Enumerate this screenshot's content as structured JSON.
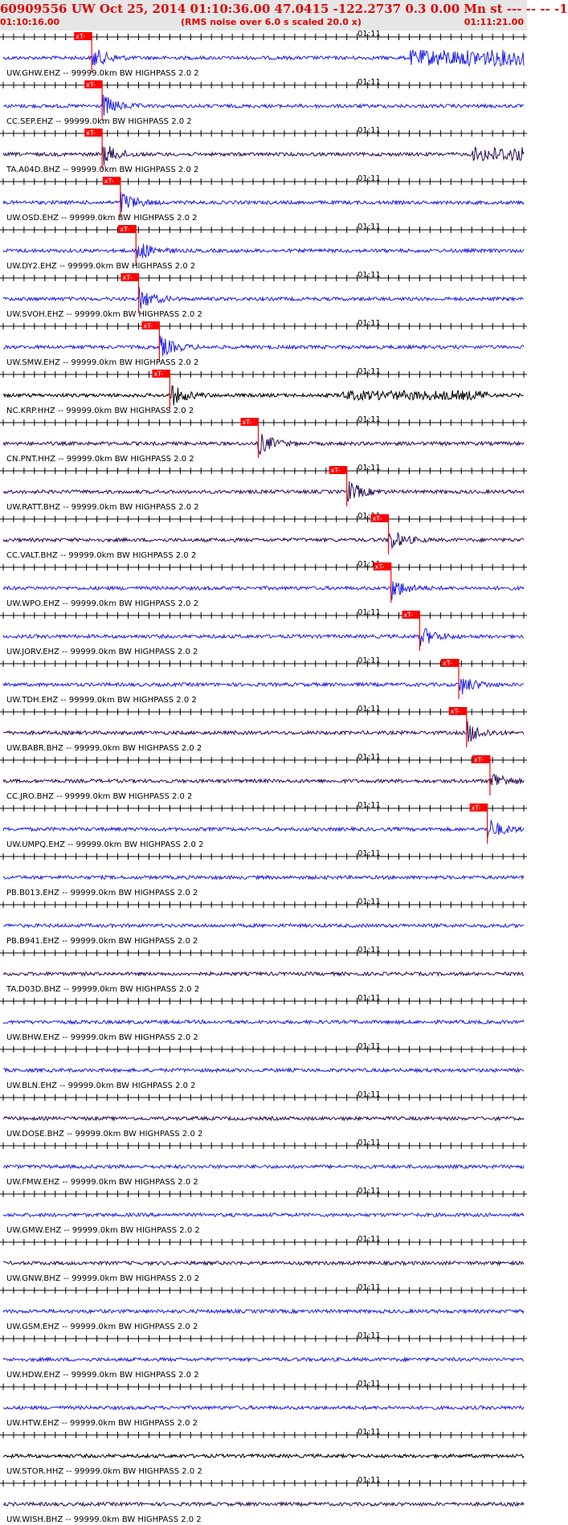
{
  "header": {
    "title": "60909556 UW Oct 25, 2014 01:10:36.00    47.0415 -122.2737  0.3 0.00 Mn st --- -- --   -1",
    "start_time": "01:10:16.00",
    "note": "(RMS noise over 6.0 s scaled 20.0 x)",
    "end_time": "01:11:21.00"
  },
  "time_label": "01:11",
  "pick_label": "xT-",
  "colors": {
    "blue": "#1f1fe6",
    "purple": "#2a0f5a",
    "black": "#000000",
    "pick": "#ff0000",
    "axis": "#000000"
  },
  "traces": [
    {
      "label": "UW.GHW.EHZ -- 99999.0km BW  HIGHPASS  2.0  2",
      "color": "blue",
      "pick": 0.17
    },
    {
      "label": "CC.SEP.EHZ -- 99999.0km BW  HIGHPASS  2.0  2",
      "color": "blue",
      "pick": 0.19
    },
    {
      "label": "TA.A04D.BHZ -- 99999.0km BW  HIGHPASS  2.0  2",
      "color": "purple",
      "pick": 0.19
    },
    {
      "label": "UW.OSD.EHZ -- 99999.0km BW  HIGHPASS  2.0  2",
      "color": "blue",
      "pick": 0.225
    },
    {
      "label": "UW.DY2.EHZ -- 99999.0km BW  HIGHPASS  2.0  2",
      "color": "blue",
      "pick": 0.255
    },
    {
      "label": "UW.SVOH.EHZ -- 99999.0km BW  HIGHPASS  2.0  2",
      "color": "blue",
      "pick": 0.26
    },
    {
      "label": "UW.SMW.EHZ -- 99999.0km BW  HIGHPASS  2.0  2",
      "color": "blue",
      "pick": 0.3
    },
    {
      "label": "NC.KRP.HHZ -- 99999.0km BW  HIGHPASS  2.0  2",
      "color": "black",
      "pick": 0.32
    },
    {
      "label": "CN.PNT.HHZ -- 99999.0km BW  HIGHPASS  2.0  2",
      "color": "purple",
      "pick": 0.49
    },
    {
      "label": "UW.RATT.BHZ -- 99999.0km BW  HIGHPASS  2.0  2",
      "color": "purple",
      "pick": 0.66
    },
    {
      "label": "CC.VALT.BHZ -- 99999.0km BW  HIGHPASS  2.0  2",
      "color": "purple",
      "pick": 0.74
    },
    {
      "label": "UW.WPO.EHZ -- 99999.0km BW  HIGHPASS  2.0  2",
      "color": "blue",
      "pick": 0.745
    },
    {
      "label": "UW.JORV.EHZ -- 99999.0km BW  HIGHPASS  2.0  2",
      "color": "blue",
      "pick": 0.8
    },
    {
      "label": "UW.TDH.EHZ -- 99999.0km BW  HIGHPASS  2.0  2",
      "color": "blue",
      "pick": 0.875
    },
    {
      "label": "UW.BABR.BHZ -- 99999.0km BW  HIGHPASS  2.0  2",
      "color": "purple",
      "pick": 0.89
    },
    {
      "label": "CC.JRO.BHZ -- 99999.0km BW  HIGHPASS  2.0  2",
      "color": "purple",
      "pick": 0.935
    },
    {
      "label": "UW.UMPQ.EHZ -- 99999.0km BW  HIGHPASS  2.0  2",
      "color": "blue",
      "pick": 0.93
    },
    {
      "label": "PB.B013.EHZ -- 99999.0km BW  HIGHPASS  2.0  2",
      "color": "blue",
      "pick": null
    },
    {
      "label": "PB.B941.EHZ -- 99999.0km BW  HIGHPASS  2.0  2",
      "color": "blue",
      "pick": null
    },
    {
      "label": "TA.D03D.BHZ -- 99999.0km BW  HIGHPASS  2.0  2",
      "color": "purple",
      "pick": null
    },
    {
      "label": "UW.BHW.EHZ -- 99999.0km BW  HIGHPASS  2.0  2",
      "color": "blue",
      "pick": null
    },
    {
      "label": "UW.BLN.EHZ -- 99999.0km BW  HIGHPASS  2.0  2",
      "color": "blue",
      "pick": null
    },
    {
      "label": "UW.DOSE.BHZ -- 99999.0km BW  HIGHPASS  2.0  2",
      "color": "purple",
      "pick": null
    },
    {
      "label": "UW.FMW.EHZ -- 99999.0km BW  HIGHPASS  2.0  2",
      "color": "blue",
      "pick": null
    },
    {
      "label": "UW.GMW.EHZ -- 99999.0km BW  HIGHPASS  2.0  2",
      "color": "blue",
      "pick": null
    },
    {
      "label": "UW.GNW.BHZ -- 99999.0km BW  HIGHPASS  2.0  2",
      "color": "purple",
      "pick": null
    },
    {
      "label": "UW.GSM.EHZ -- 99999.0km BW  HIGHPASS  2.0  2",
      "color": "blue",
      "pick": null
    },
    {
      "label": "UW.HDW.EHZ -- 99999.0km BW  HIGHPASS  2.0  2",
      "color": "blue",
      "pick": null
    },
    {
      "label": "UW.HTW.EHZ -- 99999.0km BW  HIGHPASS  2.0  2",
      "color": "blue",
      "pick": null
    },
    {
      "label": "UW.STOR.HHZ -- 99999.0km BW  HIGHPASS  2.0  2",
      "color": "black",
      "pick": null
    },
    {
      "label": "UW.WISH.BHZ -- 99999.0km BW  HIGHPASS  2.0  2",
      "color": "purple",
      "pick": null
    }
  ]
}
